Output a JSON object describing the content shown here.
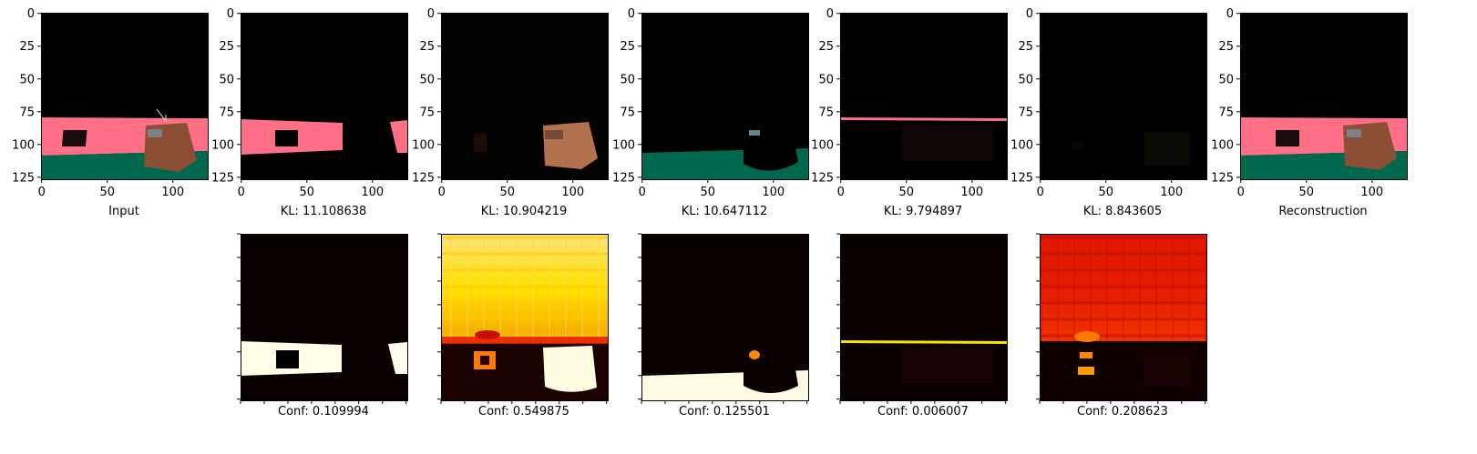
{
  "figure": {
    "top_row": [
      {
        "caption": "Input",
        "kind": "input"
      },
      {
        "caption": "KL: 11.108638",
        "kind": "slot1"
      },
      {
        "caption": "KL: 10.904219",
        "kind": "slot2"
      },
      {
        "caption": "KL: 10.647112",
        "kind": "slot3"
      },
      {
        "caption": "KL: 9.794897",
        "kind": "slot4"
      },
      {
        "caption": "KL: 8.843605",
        "kind": "slot5"
      },
      {
        "caption": "Reconstruction",
        "kind": "recon"
      }
    ],
    "bottom_row": [
      {
        "caption": "Conf: 0.109994",
        "kind": "conf1"
      },
      {
        "caption": "Conf: 0.549875",
        "kind": "conf2"
      },
      {
        "caption": "Conf: 0.125501",
        "kind": "conf3"
      },
      {
        "caption": "Conf: 0.006007",
        "kind": "conf4"
      },
      {
        "caption": "Conf: 0.208623",
        "kind": "conf5"
      }
    ],
    "x_ticks": [
      "0",
      "50",
      "100"
    ],
    "y_ticks": [
      "0",
      "25",
      "50",
      "75",
      "100",
      "125"
    ],
    "colors": {
      "pink": "#ff6f86",
      "green": "#00684d",
      "brown": "#8b4f36",
      "black": "#000000",
      "hot_white": "#fffde8",
      "hot_yellow": "#ffe000",
      "hot_red": "#e51b00",
      "hot_dark": "#1a0000"
    }
  }
}
